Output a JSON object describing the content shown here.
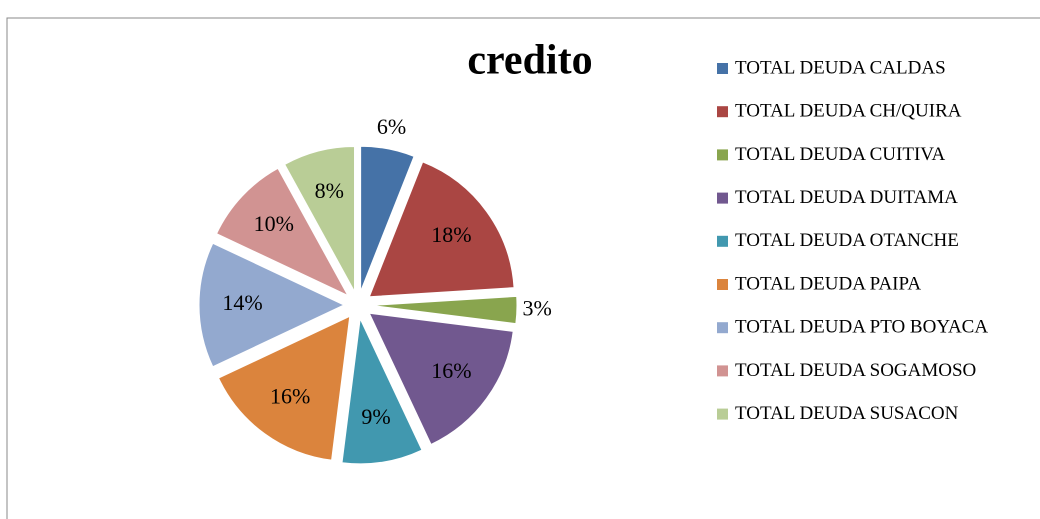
{
  "chart_data": {
    "type": "pie",
    "title": "credito",
    "categories": [
      "TOTAL DEUDA CALDAS",
      "TOTAL DEUDA CH/QUIRA",
      "TOTAL DEUDA CUITIVA",
      "TOTAL DEUDA DUITAMA",
      "TOTAL DEUDA OTANCHE",
      "TOTAL DEUDA PAIPA",
      "TOTAL DEUDA PTO BOYACA",
      "TOTAL DEUDA SOGAMOSO",
      "TOTAL DEUDA SUSACON"
    ],
    "values": [
      6,
      18,
      3,
      16,
      9,
      16,
      14,
      10,
      8
    ],
    "value_labels": [
      "6%",
      "18%",
      "3%",
      "16%",
      "9%",
      "16%",
      "14%",
      "10%",
      "8%"
    ],
    "colors": [
      "#4572a7",
      "#aa4643",
      "#89a54e",
      "#71588f",
      "#4198af",
      "#db843d",
      "#93a9cf",
      "#d19392",
      "#b9cd96"
    ],
    "legend": "right"
  }
}
